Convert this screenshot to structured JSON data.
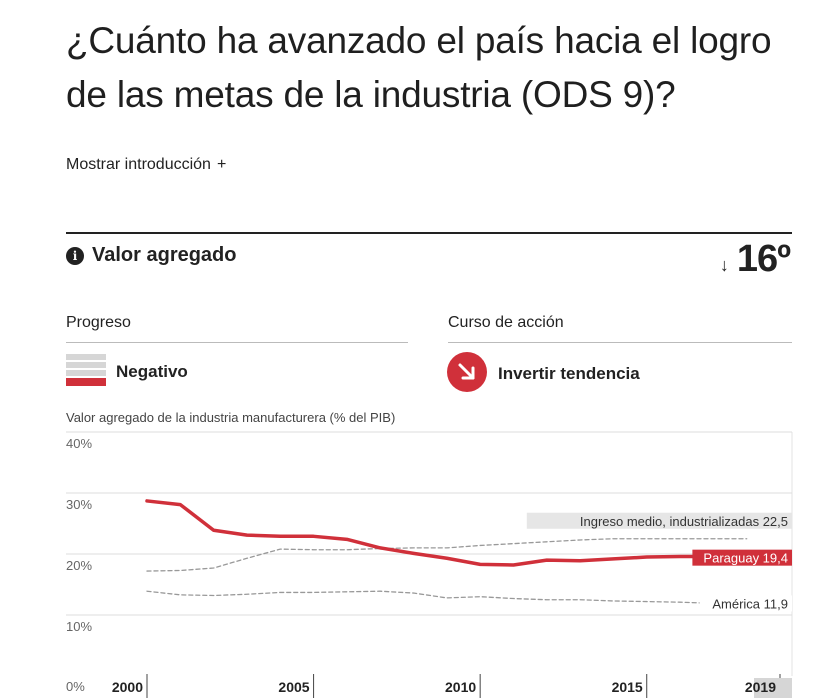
{
  "title": "¿Cuánto ha avanzado el país hacia el logro de las metas de la industria (ODS 9)?",
  "intro_toggle": {
    "label": "Mostrar introducción",
    "icon": "+"
  },
  "indicator": {
    "info_icon": "i",
    "name": "Valor agregado",
    "rank_arrow": "↓",
    "rank": "16º"
  },
  "progress": {
    "label": "Progreso",
    "status": "Negativo"
  },
  "action": {
    "label": "Curso de acción",
    "status": "Invertir tendencia"
  },
  "colors": {
    "accent": "#d0303a",
    "gray_line": "#999999",
    "grid": "#dddddd"
  },
  "chart_data": {
    "type": "line",
    "caption": "Valor agregado de la industria manufacturera (% del PIB)",
    "ylim": [
      0,
      40
    ],
    "yticks": [
      {
        "value": 40,
        "label": "40%"
      },
      {
        "value": 30,
        "label": "30%"
      },
      {
        "value": 20,
        "label": "20%"
      },
      {
        "value": 10,
        "label": "10%"
      },
      {
        "value": 0,
        "label": "0%"
      }
    ],
    "xlim": [
      2000,
      2019
    ],
    "xticks": [
      {
        "value": 2000,
        "label": "2000"
      },
      {
        "value": 2005,
        "label": "2005"
      },
      {
        "value": 2010,
        "label": "2010"
      },
      {
        "value": 2015,
        "label": "2015"
      },
      {
        "value": 2019,
        "label": "2019"
      }
    ],
    "grid": true,
    "series": [
      {
        "name": "Paraguay",
        "end_label": "Paraguay 19,4",
        "style": "solid",
        "color": "#d0303a",
        "x": [
          2000,
          2001,
          2002,
          2003,
          2004,
          2005,
          2006,
          2007,
          2008,
          2009,
          2010,
          2011,
          2012,
          2013,
          2014,
          2015,
          2016,
          2017,
          2018
        ],
        "y": [
          28.7,
          28.1,
          23.9,
          23.1,
          22.9,
          22.9,
          22.4,
          21.0,
          20.1,
          19.3,
          18.3,
          18.2,
          19.0,
          18.9,
          19.2,
          19.5,
          19.6,
          19.6,
          19.4
        ]
      },
      {
        "name": "Ingreso medio, industrializadas",
        "end_label": "Ingreso medio, industrializadas 22,5",
        "style": "dashed",
        "color": "#999999",
        "x": [
          2000,
          2001,
          2002,
          2003,
          2004,
          2005,
          2006,
          2007,
          2008,
          2009,
          2010,
          2011,
          2012,
          2013,
          2014,
          2015,
          2016,
          2017,
          2018
        ],
        "y": [
          17.2,
          17.3,
          17.7,
          19.3,
          20.8,
          20.7,
          20.7,
          20.9,
          21.0,
          21.0,
          21.4,
          21.7,
          22.0,
          22.3,
          22.5,
          22.5,
          22.5,
          22.5,
          22.5
        ]
      },
      {
        "name": "América",
        "end_label": "América 11,9",
        "style": "dashed",
        "color": "#999999",
        "x": [
          2000,
          2001,
          2002,
          2003,
          2004,
          2005,
          2006,
          2007,
          2008,
          2009,
          2010,
          2011,
          2012,
          2013,
          2014,
          2015,
          2016,
          2017,
          2018
        ],
        "y": [
          13.9,
          13.3,
          13.2,
          13.4,
          13.7,
          13.7,
          13.8,
          13.9,
          13.6,
          12.8,
          13.0,
          12.7,
          12.5,
          12.5,
          12.3,
          12.2,
          12.1,
          11.9,
          11.9
        ]
      }
    ]
  }
}
